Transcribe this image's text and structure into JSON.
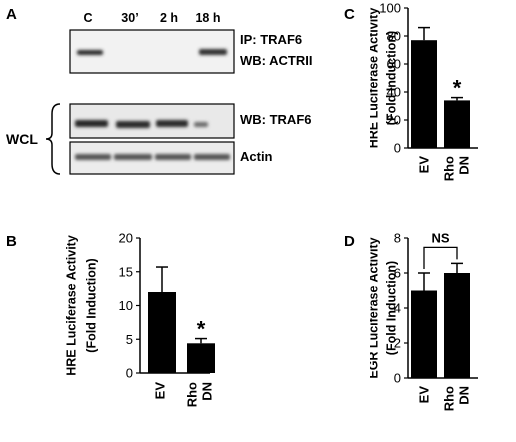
{
  "panels": {
    "A": {
      "letter": "A",
      "lanes": [
        "C",
        "30’",
        "2 h",
        "18 h"
      ],
      "ip_label": "IP: TRAF6",
      "wb_label": "WB: ACTRII",
      "wb_traf6_label": "WB: TRAF6",
      "actin_label": "Actin",
      "wcl_label": "WCL"
    },
    "B": {
      "letter": "B"
    },
    "C": {
      "letter": "C"
    },
    "D": {
      "letter": "D"
    }
  },
  "chart_data": [
    {
      "panel": "B",
      "type": "bar",
      "categories": [
        "EV",
        "Rho DN"
      ],
      "category_lines": [
        [
          "EV"
        ],
        [
          "Rho",
          "DN"
        ]
      ],
      "values": [
        12.0,
        4.4
      ],
      "errors": [
        3.7,
        0.7
      ],
      "ylabel_lines": [
        "HRE Luciferase Activity",
        "(Fold Induction)"
      ],
      "ylim": [
        0,
        20
      ],
      "yticks": [
        0,
        5,
        10,
        15,
        20
      ],
      "annotation": "*",
      "annotation_index": 1
    },
    {
      "panel": "C",
      "type": "bar",
      "categories": [
        "EV",
        "Rho DN"
      ],
      "category_lines": [
        [
          "EV"
        ],
        [
          "Rho",
          "DN"
        ]
      ],
      "values": [
        77.0,
        34.0
      ],
      "errors": [
        9.0,
        2.0
      ],
      "ylabel_lines": [
        "HRE Luciferase Activity",
        "(Fold Induction)"
      ],
      "ylim": [
        0,
        100
      ],
      "yticks": [
        0,
        20,
        40,
        60,
        80,
        100
      ],
      "annotation": "*",
      "annotation_index": 1
    },
    {
      "panel": "D",
      "type": "bar",
      "categories": [
        "EV",
        "Rho DN"
      ],
      "category_lines": [
        [
          "EV"
        ],
        [
          "Rho",
          "DN"
        ]
      ],
      "values": [
        5.0,
        6.0
      ],
      "errors": [
        1.0,
        0.55
      ],
      "ylabel_lines": [
        "EGR Luciferase Activity",
        "(Fold Induction)"
      ],
      "ylim": [
        0,
        8
      ],
      "yticks": [
        0,
        2,
        4,
        6,
        8
      ],
      "annotation": "NS"
    }
  ]
}
